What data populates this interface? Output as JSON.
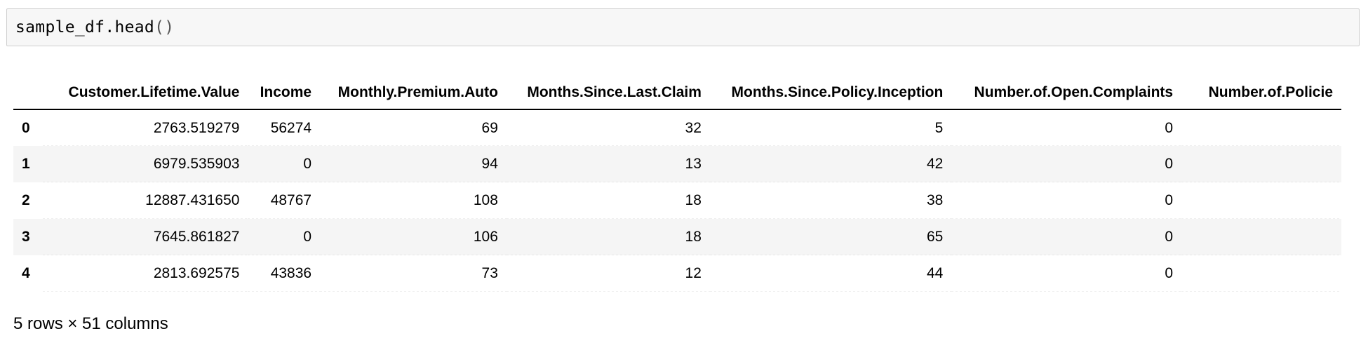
{
  "code_cell": {
    "code": "sample_df.head"
  },
  "table": {
    "columns": [
      "Customer.Lifetime.Value",
      "Income",
      "Monthly.Premium.Auto",
      "Months.Since.Last.Claim",
      "Months.Since.Policy.Inception",
      "Number.of.Open.Complaints",
      "Number.of.Policie"
    ],
    "rows": [
      {
        "index": "0",
        "cells": [
          "2763.519279",
          "56274",
          "69",
          "32",
          "5",
          "0",
          ""
        ]
      },
      {
        "index": "1",
        "cells": [
          "6979.535903",
          "0",
          "94",
          "13",
          "42",
          "0",
          ""
        ]
      },
      {
        "index": "2",
        "cells": [
          "12887.431650",
          "48767",
          "108",
          "18",
          "38",
          "0",
          ""
        ]
      },
      {
        "index": "3",
        "cells": [
          "7645.861827",
          "0",
          "106",
          "18",
          "65",
          "0",
          ""
        ]
      },
      {
        "index": "4",
        "cells": [
          "2813.692575",
          "43836",
          "73",
          "12",
          "44",
          "0",
          ""
        ]
      }
    ]
  },
  "footer": {
    "shape_text": "5 rows × 51 columns"
  },
  "colors": {
    "code_background": "#f7f7f7",
    "code_border": "#cfcfcf",
    "alt_row": "#f5f5f5"
  }
}
